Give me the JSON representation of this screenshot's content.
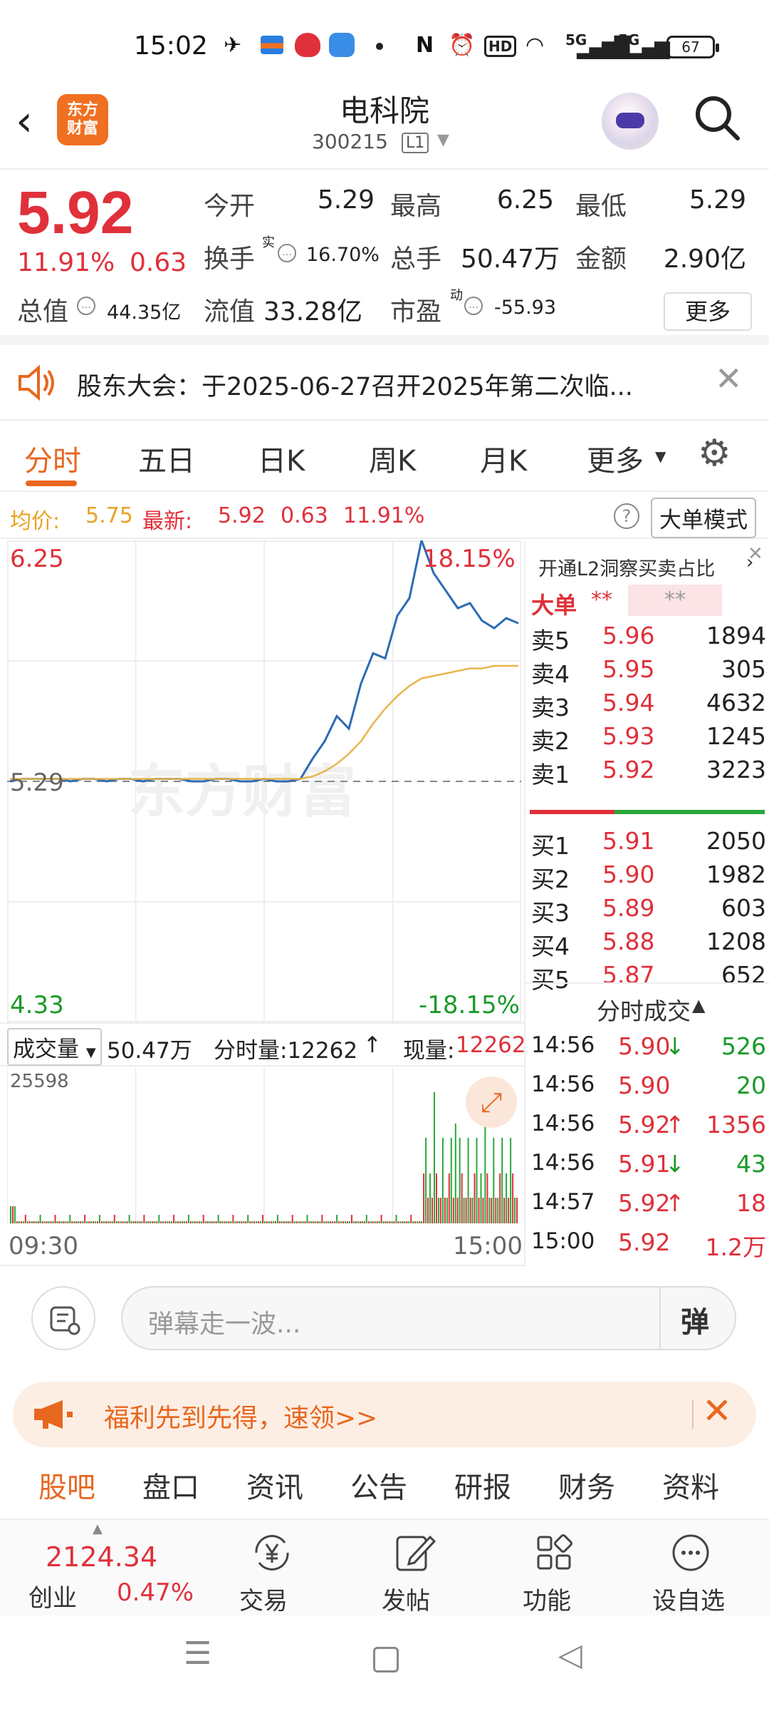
{
  "status": {
    "time": "15:02",
    "hd": "HD",
    "net1": "5G",
    "net2": "5G",
    "battery": "67"
  },
  "header": {
    "logo": "东方\n财富",
    "title": "电科院",
    "code": "300215",
    "level": "L1"
  },
  "quote": {
    "price": "5.92",
    "pct": "11.91%",
    "change": "0.63",
    "open_label": "今开",
    "open": "5.29",
    "high_label": "最高",
    "high": "6.25",
    "low_label": "最低",
    "low": "5.29",
    "turnover_label": "换手",
    "turnover_sup": "实",
    "turnover": "16.70%",
    "vol_label": "总手",
    "vol": "50.47万",
    "amount_label": "金额",
    "amount": "2.90亿",
    "mcap_label": "总值",
    "mcap": "44.35亿",
    "float_label": "流值",
    "float": "33.28亿",
    "pe_label": "市盈",
    "pe_sup": "动",
    "pe": "-55.93",
    "more": "更多"
  },
  "notice": {
    "text": "股东大会：于2025-06-27召开2025年第二次临..."
  },
  "tabs": [
    "分时",
    "五日",
    "日K",
    "周K",
    "月K",
    "更多"
  ],
  "avgbar": {
    "avg_label": "均价:",
    "avg": "5.75",
    "last_label": "最新:",
    "last": "5.92",
    "chg": "0.63",
    "pct": "11.91%",
    "mode": "大单模式"
  },
  "chart": {
    "top_price": "6.25",
    "top_pct": "18.15%",
    "mid_price": "5.29",
    "bottom_price": "4.33",
    "bottom_pct": "-18.15%",
    "watermark": "东方财富"
  },
  "chart_data": {
    "type": "line",
    "ylim": [
      4.33,
      6.25
    ],
    "series": [
      {
        "values": [
          5.29,
          5.3,
          5.3,
          5.3,
          5.3,
          5.29,
          5.3,
          5.3,
          5.29,
          5.3,
          5.3,
          5.29,
          5.3,
          5.3,
          5.3,
          5.29,
          5.29,
          5.3,
          5.3,
          5.29,
          5.29,
          5.3,
          5.29,
          5.29,
          5.3,
          5.38,
          5.45,
          5.55,
          5.5,
          5.68,
          5.8,
          5.78,
          5.95,
          6.02,
          6.25,
          6.12,
          6.05,
          5.98,
          6.0,
          5.93,
          5.9,
          5.94,
          5.92
        ],
        "color": "#2d6bb5"
      },
      {
        "values": [
          5.3,
          5.3,
          5.3,
          5.3,
          5.3,
          5.3,
          5.3,
          5.3,
          5.3,
          5.3,
          5.3,
          5.3,
          5.3,
          5.3,
          5.3,
          5.3,
          5.3,
          5.3,
          5.3,
          5.3,
          5.3,
          5.3,
          5.3,
          5.3,
          5.3,
          5.31,
          5.33,
          5.36,
          5.4,
          5.45,
          5.52,
          5.58,
          5.63,
          5.67,
          5.7,
          5.71,
          5.72,
          5.73,
          5.74,
          5.74,
          5.75,
          5.75,
          5.75
        ],
        "color": "#e8b54a"
      }
    ]
  },
  "orderbook": {
    "header": "开通L2洞察买卖占比",
    "big_label": "大单",
    "big_v1": "**",
    "big_v2": "**",
    "asks": [
      {
        "label": "卖5",
        "price": "5.96",
        "vol": "1894"
      },
      {
        "label": "卖4",
        "price": "5.95",
        "vol": "305"
      },
      {
        "label": "卖3",
        "price": "5.94",
        "vol": "4632"
      },
      {
        "label": "卖2",
        "price": "5.93",
        "vol": "1245"
      },
      {
        "label": "卖1",
        "price": "5.92",
        "vol": "3223"
      }
    ],
    "bids": [
      {
        "label": "买1",
        "price": "5.91",
        "vol": "2050"
      },
      {
        "label": "买2",
        "price": "5.90",
        "vol": "1982"
      },
      {
        "label": "买3",
        "price": "5.89",
        "vol": "603"
      },
      {
        "label": "买4",
        "price": "5.88",
        "vol": "1208"
      },
      {
        "label": "买5",
        "price": "5.87",
        "vol": "652"
      }
    ],
    "trades_title": "分时成交",
    "trades": [
      {
        "time": "14:56",
        "price": "5.90",
        "arrow": "↓",
        "vol": "526",
        "dir": "down"
      },
      {
        "time": "14:56",
        "price": "5.90",
        "arrow": "",
        "vol": "20",
        "dir": "down"
      },
      {
        "time": "14:56",
        "price": "5.92",
        "arrow": "↑",
        "vol": "1356",
        "dir": "up"
      },
      {
        "time": "14:56",
        "price": "5.91",
        "arrow": "↓",
        "vol": "43",
        "dir": "down"
      },
      {
        "time": "14:57",
        "price": "5.92",
        "arrow": "↑",
        "vol": "18",
        "dir": "up"
      },
      {
        "time": "15:00",
        "price": "5.92",
        "arrow": "",
        "vol": "1.2万",
        "dir": "up"
      }
    ]
  },
  "volume": {
    "label": "成交量",
    "total": "50.47万",
    "tick_label": "分时量:12262",
    "now_label": "现量:",
    "now": "12262",
    "max": "25598",
    "start": "09:30",
    "end": "15:00"
  },
  "danmu": {
    "placeholder": "弹幕走一波...",
    "send": "弹"
  },
  "promo": {
    "text": "福利先到先得，速领>>"
  },
  "subtabs": [
    "股吧",
    "盘口",
    "资讯",
    "公告",
    "研报",
    "财务",
    "资料"
  ],
  "bottomnav": {
    "index": "2124.34",
    "index_name": "创业",
    "index_pct": "0.47%",
    "items": [
      "交易",
      "发帖",
      "功能",
      "设自选"
    ]
  }
}
